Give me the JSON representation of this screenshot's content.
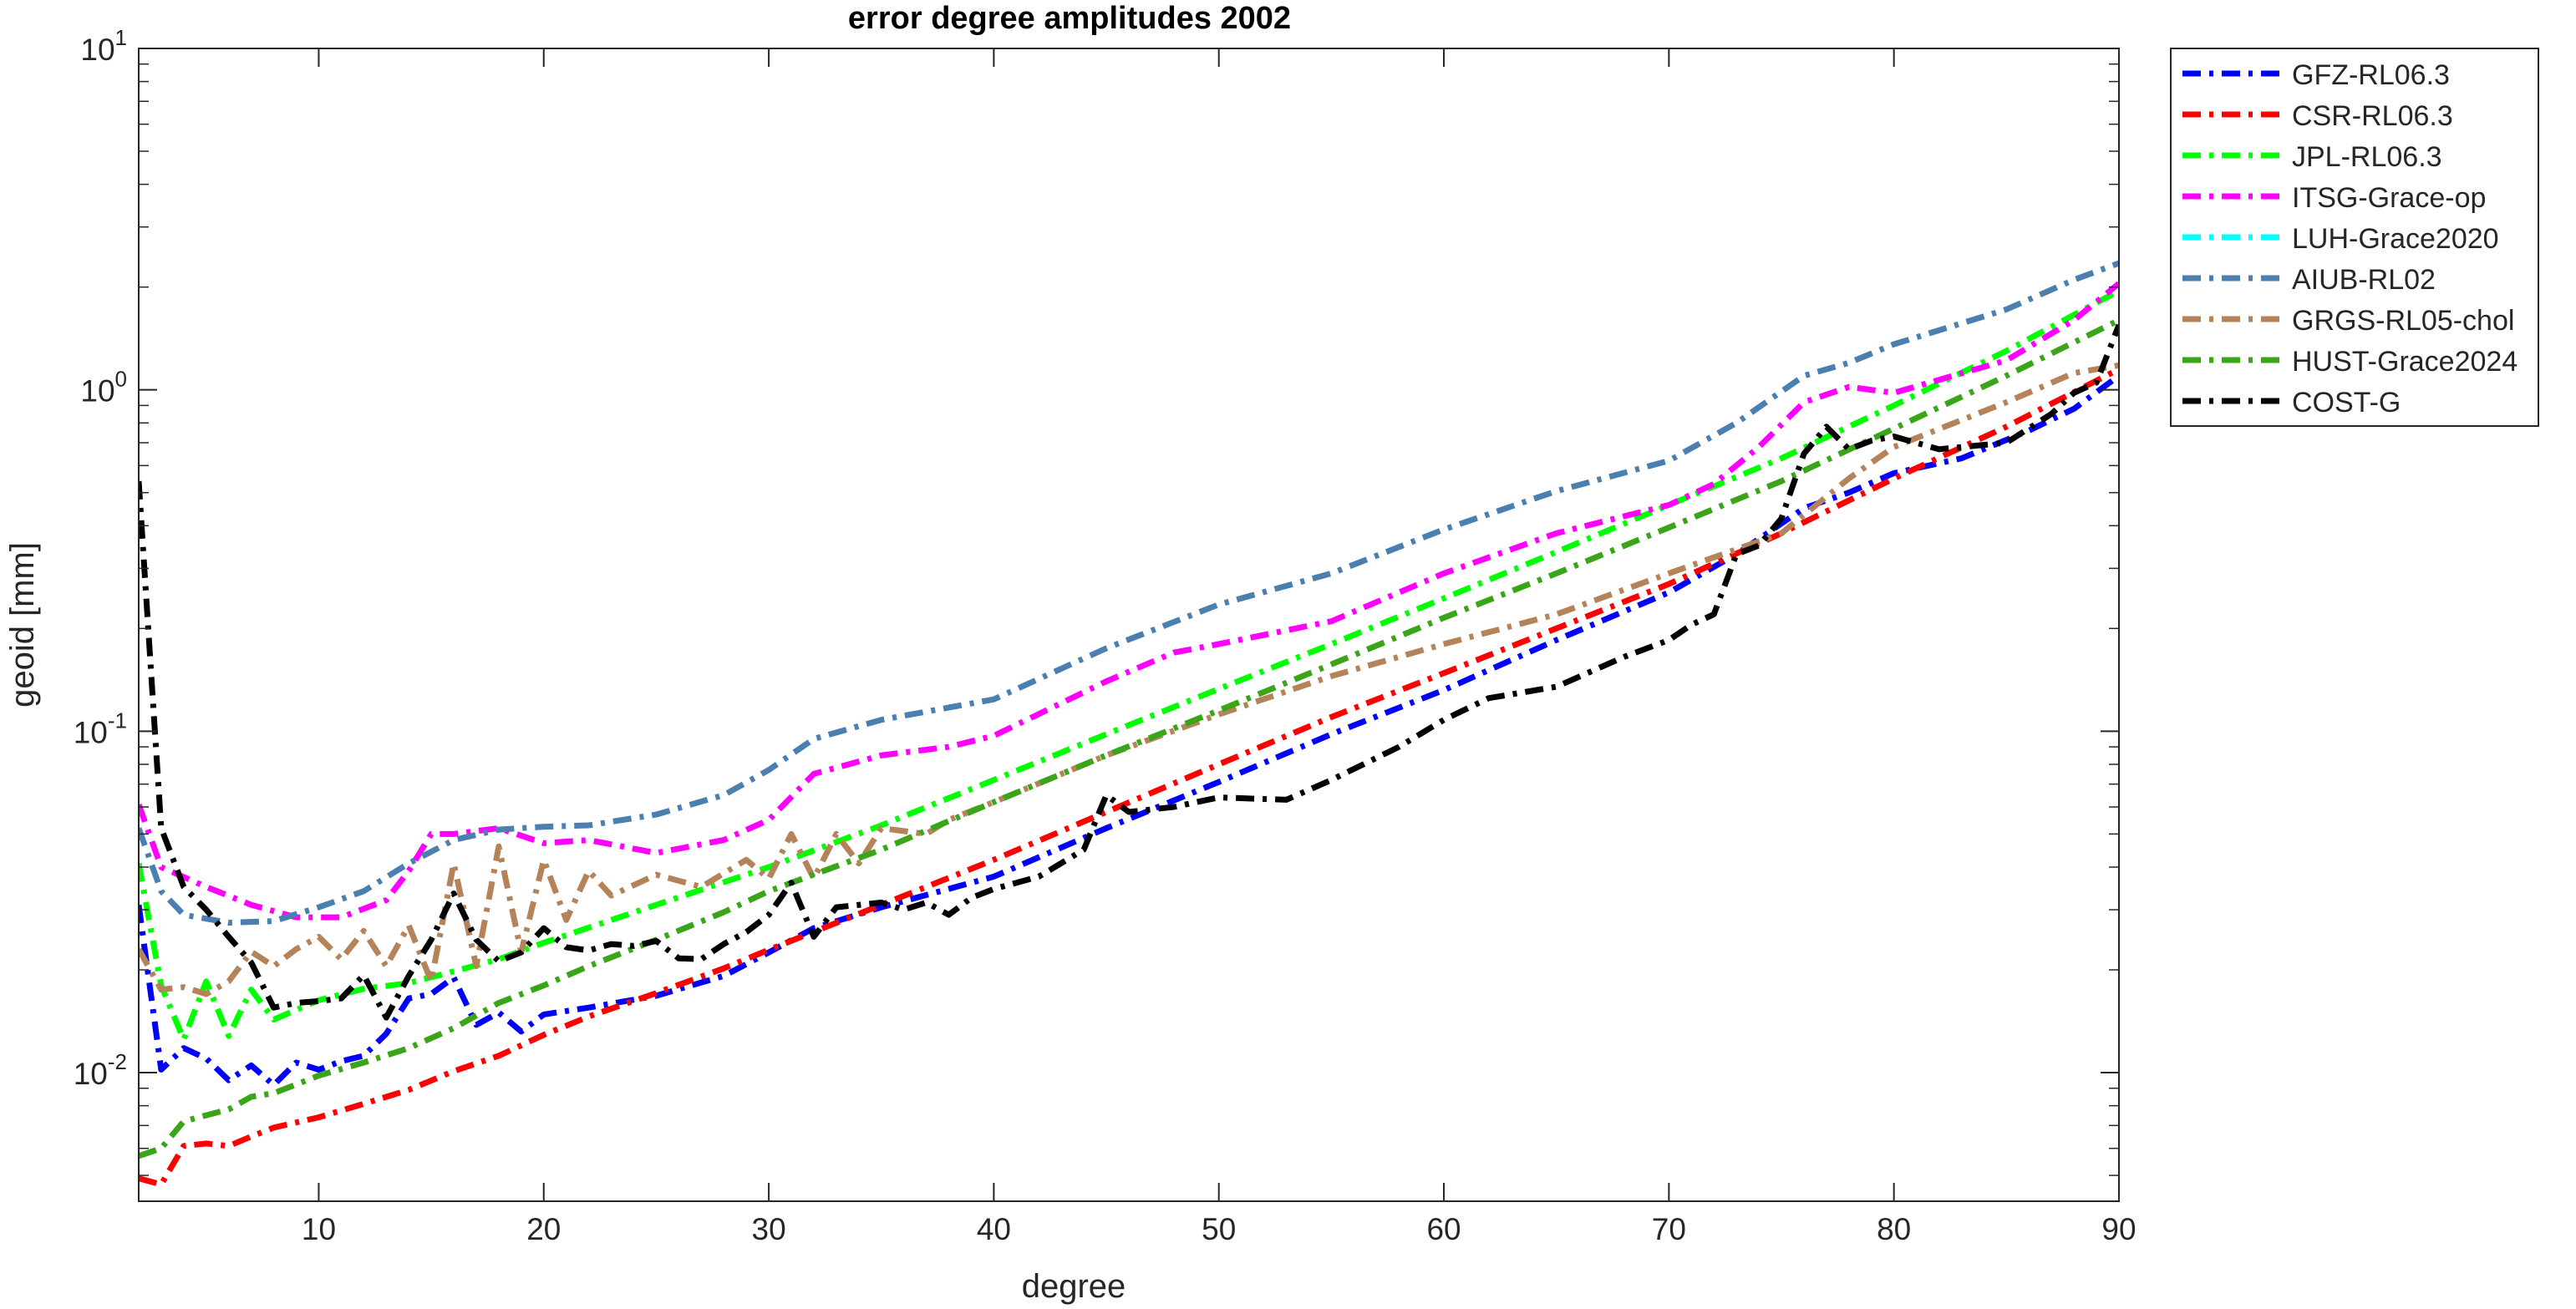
{
  "chart_data": {
    "type": "line",
    "title": "error degree amplitudes 2002",
    "xlabel": "degree",
    "ylabel": "geoid [mm]",
    "xlim": [
      2,
      90
    ],
    "ylim": [
      0.0042,
      10
    ],
    "yscale": "log",
    "grid": false,
    "legend_position": "outside-top-right",
    "x_ticks": [
      10,
      20,
      30,
      40,
      50,
      60,
      70,
      80,
      90
    ],
    "y_ticks": [
      {
        "value": 0.01,
        "base": "10",
        "exp": "-2"
      },
      {
        "value": 0.1,
        "base": "10",
        "exp": "-1"
      },
      {
        "value": 1,
        "base": "10",
        "exp": "0"
      },
      {
        "value": 10,
        "base": "10",
        "exp": "1"
      }
    ],
    "series": [
      {
        "name": "GFZ-RL06.3",
        "color": "#0000ff",
        "points": [
          [
            2,
            0.031
          ],
          [
            3,
            0.0102
          ],
          [
            4,
            0.0118
          ],
          [
            5,
            0.011
          ],
          [
            6,
            0.0095
          ],
          [
            7,
            0.0105
          ],
          [
            8,
            0.0092
          ],
          [
            9,
            0.0107
          ],
          [
            10,
            0.0102
          ],
          [
            11,
            0.0108
          ],
          [
            12,
            0.0112
          ],
          [
            13,
            0.013
          ],
          [
            14,
            0.0165
          ],
          [
            15,
            0.017
          ],
          [
            16,
            0.019
          ],
          [
            17,
            0.0138
          ],
          [
            18,
            0.015
          ],
          [
            19,
            0.0132
          ],
          [
            20,
            0.0148
          ],
          [
            22,
            0.0155
          ],
          [
            25,
            0.0168
          ],
          [
            28,
            0.0192
          ],
          [
            30,
            0.0225
          ],
          [
            32,
            0.0265
          ],
          [
            35,
            0.0305
          ],
          [
            40,
            0.0375
          ],
          [
            45,
            0.052
          ],
          [
            50,
            0.071
          ],
          [
            55,
            0.098
          ],
          [
            60,
            0.132
          ],
          [
            65,
            0.185
          ],
          [
            70,
            0.255
          ],
          [
            73,
            0.33
          ],
          [
            76,
            0.45
          ],
          [
            78,
            0.5
          ],
          [
            80,
            0.57
          ],
          [
            83,
            0.63
          ],
          [
            86,
            0.76
          ],
          [
            88,
            0.88
          ],
          [
            90,
            1.1
          ]
        ]
      },
      {
        "name": "CSR-RL06.3",
        "color": "#ff0000",
        "points": [
          [
            2,
            0.0049
          ],
          [
            3,
            0.0047
          ],
          [
            4,
            0.0061
          ],
          [
            5,
            0.0062
          ],
          [
            6,
            0.0061
          ],
          [
            7,
            0.0065
          ],
          [
            8,
            0.0069
          ],
          [
            10,
            0.0074
          ],
          [
            12,
            0.0081
          ],
          [
            14,
            0.0089
          ],
          [
            16,
            0.0101
          ],
          [
            18,
            0.0112
          ],
          [
            20,
            0.0129
          ],
          [
            22,
            0.0146
          ],
          [
            25,
            0.0171
          ],
          [
            28,
            0.0202
          ],
          [
            30,
            0.0229
          ],
          [
            35,
            0.031
          ],
          [
            40,
            0.042
          ],
          [
            45,
            0.058
          ],
          [
            50,
            0.08
          ],
          [
            55,
            0.11
          ],
          [
            60,
            0.148
          ],
          [
            65,
            0.2
          ],
          [
            70,
            0.27
          ],
          [
            75,
            0.38
          ],
          [
            80,
            0.55
          ],
          [
            85,
            0.78
          ],
          [
            90,
            1.15
          ]
        ]
      },
      {
        "name": "JPL-RL06.3",
        "color": "#00ff00",
        "points": [
          [
            2,
            0.041
          ],
          [
            3,
            0.018
          ],
          [
            4,
            0.0125
          ],
          [
            5,
            0.0185
          ],
          [
            6,
            0.0128
          ],
          [
            7,
            0.0175
          ],
          [
            8,
            0.0143
          ],
          [
            10,
            0.0163
          ],
          [
            12,
            0.0176
          ],
          [
            14,
            0.0183
          ],
          [
            16,
            0.0198
          ],
          [
            18,
            0.0215
          ],
          [
            20,
            0.024
          ],
          [
            25,
            0.031
          ],
          [
            30,
            0.04
          ],
          [
            35,
            0.053
          ],
          [
            40,
            0.072
          ],
          [
            45,
            0.098
          ],
          [
            50,
            0.133
          ],
          [
            55,
            0.18
          ],
          [
            60,
            0.245
          ],
          [
            65,
            0.335
          ],
          [
            70,
            0.46
          ],
          [
            75,
            0.63
          ],
          [
            80,
            0.9
          ],
          [
            85,
            1.3
          ],
          [
            90,
            1.95
          ]
        ]
      },
      {
        "name": "ITSG-Grace-op",
        "color": "#ff00ff",
        "points": [
          [
            2,
            0.061
          ],
          [
            3,
            0.04
          ],
          [
            5,
            0.035
          ],
          [
            7,
            0.031
          ],
          [
            9,
            0.0285
          ],
          [
            11,
            0.0285
          ],
          [
            13,
            0.032
          ],
          [
            14,
            0.039
          ],
          [
            15,
            0.05
          ],
          [
            16,
            0.05
          ],
          [
            18,
            0.052
          ],
          [
            20,
            0.047
          ],
          [
            22,
            0.048
          ],
          [
            25,
            0.044
          ],
          [
            28,
            0.048
          ],
          [
            30,
            0.055
          ],
          [
            32,
            0.075
          ],
          [
            35,
            0.085
          ],
          [
            38,
            0.09
          ],
          [
            40,
            0.097
          ],
          [
            45,
            0.14
          ],
          [
            48,
            0.17
          ],
          [
            50,
            0.18
          ],
          [
            55,
            0.21
          ],
          [
            60,
            0.29
          ],
          [
            65,
            0.38
          ],
          [
            70,
            0.46
          ],
          [
            72,
            0.53
          ],
          [
            74,
            0.68
          ],
          [
            76,
            0.92
          ],
          [
            78,
            1.02
          ],
          [
            80,
            0.98
          ],
          [
            85,
            1.22
          ],
          [
            88,
            1.6
          ],
          [
            90,
            2.05
          ]
        ]
      },
      {
        "name": "LUH-Grace2020",
        "color": "#00ffff",
        "points": []
      },
      {
        "name": "AIUB-RL02",
        "color": "#4a7fb0",
        "points": [
          [
            2,
            0.052
          ],
          [
            3,
            0.034
          ],
          [
            4,
            0.029
          ],
          [
            6,
            0.0275
          ],
          [
            8,
            0.0278
          ],
          [
            10,
            0.0305
          ],
          [
            12,
            0.034
          ],
          [
            14,
            0.041
          ],
          [
            16,
            0.048
          ],
          [
            18,
            0.0515
          ],
          [
            20,
            0.0525
          ],
          [
            22,
            0.053
          ],
          [
            25,
            0.057
          ],
          [
            28,
            0.065
          ],
          [
            30,
            0.077
          ],
          [
            32,
            0.095
          ],
          [
            35,
            0.108
          ],
          [
            40,
            0.124
          ],
          [
            45,
            0.175
          ],
          [
            50,
            0.235
          ],
          [
            55,
            0.29
          ],
          [
            60,
            0.39
          ],
          [
            65,
            0.505
          ],
          [
            70,
            0.62
          ],
          [
            73,
            0.8
          ],
          [
            76,
            1.1
          ],
          [
            78,
            1.2
          ],
          [
            80,
            1.36
          ],
          [
            85,
            1.72
          ],
          [
            88,
            2.1
          ],
          [
            90,
            2.35
          ]
        ]
      },
      {
        "name": "GRGS-RL05-chol",
        "color": "#b5835a",
        "points": [
          [
            2,
            0.023
          ],
          [
            3,
            0.0175
          ],
          [
            4,
            0.0178
          ],
          [
            5,
            0.017
          ],
          [
            6,
            0.0185
          ],
          [
            7,
            0.0226
          ],
          [
            8,
            0.0205
          ],
          [
            9,
            0.023
          ],
          [
            10,
            0.025
          ],
          [
            11,
            0.0215
          ],
          [
            12,
            0.026
          ],
          [
            13,
            0.0205
          ],
          [
            14,
            0.027
          ],
          [
            15,
            0.0185
          ],
          [
            16,
            0.041
          ],
          [
            17,
            0.0205
          ],
          [
            18,
            0.046
          ],
          [
            19,
            0.0225
          ],
          [
            20,
            0.042
          ],
          [
            21,
            0.028
          ],
          [
            22,
            0.039
          ],
          [
            23,
            0.033
          ],
          [
            25,
            0.038
          ],
          [
            27,
            0.035
          ],
          [
            29,
            0.042
          ],
          [
            30,
            0.037
          ],
          [
            31,
            0.05
          ],
          [
            32,
            0.037
          ],
          [
            33,
            0.05
          ],
          [
            34,
            0.041
          ],
          [
            35,
            0.052
          ],
          [
            37,
            0.05
          ],
          [
            38,
            0.055
          ],
          [
            40,
            0.062
          ],
          [
            45,
            0.085
          ],
          [
            50,
            0.112
          ],
          [
            55,
            0.145
          ],
          [
            60,
            0.18
          ],
          [
            65,
            0.22
          ],
          [
            70,
            0.29
          ],
          [
            75,
            0.38
          ],
          [
            78,
            0.55
          ],
          [
            80,
            0.68
          ],
          [
            85,
            0.92
          ],
          [
            88,
            1.12
          ],
          [
            90,
            1.18
          ]
        ]
      },
      {
        "name": "HUST-Grace2024",
        "color": "#3ba51a",
        "points": [
          [
            2,
            0.0057
          ],
          [
            3,
            0.006
          ],
          [
            4,
            0.0072
          ],
          [
            5,
            0.0075
          ],
          [
            6,
            0.0078
          ],
          [
            7,
            0.0085
          ],
          [
            8,
            0.0087
          ],
          [
            10,
            0.0098
          ],
          [
            12,
            0.0107
          ],
          [
            14,
            0.0118
          ],
          [
            16,
            0.0135
          ],
          [
            18,
            0.016
          ],
          [
            20,
            0.018
          ],
          [
            22,
            0.0205
          ],
          [
            25,
            0.0245
          ],
          [
            28,
            0.0295
          ],
          [
            30,
            0.034
          ],
          [
            35,
            0.045
          ],
          [
            40,
            0.062
          ],
          [
            45,
            0.085
          ],
          [
            50,
            0.115
          ],
          [
            55,
            0.157
          ],
          [
            60,
            0.215
          ],
          [
            65,
            0.29
          ],
          [
            70,
            0.395
          ],
          [
            75,
            0.54
          ],
          [
            80,
            0.77
          ],
          [
            85,
            1.1
          ],
          [
            90,
            1.6
          ]
        ]
      },
      {
        "name": "COST-G",
        "color": "#000000",
        "points": [
          [
            2,
            0.54
          ],
          [
            3,
            0.052
          ],
          [
            4,
            0.035
          ],
          [
            5,
            0.03
          ],
          [
            6,
            0.025
          ],
          [
            7,
            0.021
          ],
          [
            8,
            0.0155
          ],
          [
            9,
            0.016
          ],
          [
            10,
            0.0162
          ],
          [
            11,
            0.0165
          ],
          [
            12,
            0.0193
          ],
          [
            13,
            0.0145
          ],
          [
            14,
            0.0192
          ],
          [
            15,
            0.0245
          ],
          [
            16,
            0.0335
          ],
          [
            17,
            0.0245
          ],
          [
            18,
            0.0212
          ],
          [
            19,
            0.0225
          ],
          [
            20,
            0.0265
          ],
          [
            21,
            0.0233
          ],
          [
            22,
            0.0228
          ],
          [
            23,
            0.0238
          ],
          [
            24,
            0.0235
          ],
          [
            25,
            0.0243
          ],
          [
            26,
            0.0216
          ],
          [
            27,
            0.0215
          ],
          [
            28,
            0.0238
          ],
          [
            29,
            0.0258
          ],
          [
            30,
            0.029
          ],
          [
            31,
            0.036
          ],
          [
            32,
            0.025
          ],
          [
            33,
            0.0305
          ],
          [
            35,
            0.0315
          ],
          [
            36,
            0.03
          ],
          [
            37,
            0.0315
          ],
          [
            38,
            0.029
          ],
          [
            39,
            0.0325
          ],
          [
            40,
            0.0345
          ],
          [
            42,
            0.0375
          ],
          [
            44,
            0.045
          ],
          [
            45,
            0.065
          ],
          [
            46,
            0.058
          ],
          [
            48,
            0.06
          ],
          [
            50,
            0.064
          ],
          [
            53,
            0.063
          ],
          [
            55,
            0.072
          ],
          [
            58,
            0.09
          ],
          [
            60,
            0.108
          ],
          [
            62,
            0.125
          ],
          [
            65,
            0.135
          ],
          [
            68,
            0.165
          ],
          [
            70,
            0.185
          ],
          [
            71,
            0.205
          ],
          [
            72,
            0.22
          ],
          [
            73,
            0.33
          ],
          [
            74,
            0.35
          ],
          [
            75,
            0.42
          ],
          [
            76,
            0.65
          ],
          [
            77,
            0.78
          ],
          [
            78,
            0.67
          ],
          [
            79,
            0.71
          ],
          [
            80,
            0.73
          ],
          [
            82,
            0.67
          ],
          [
            85,
            0.7
          ],
          [
            87,
            0.85
          ],
          [
            88,
            0.98
          ],
          [
            89,
            1.05
          ],
          [
            90,
            1.55
          ]
        ]
      }
    ]
  }
}
